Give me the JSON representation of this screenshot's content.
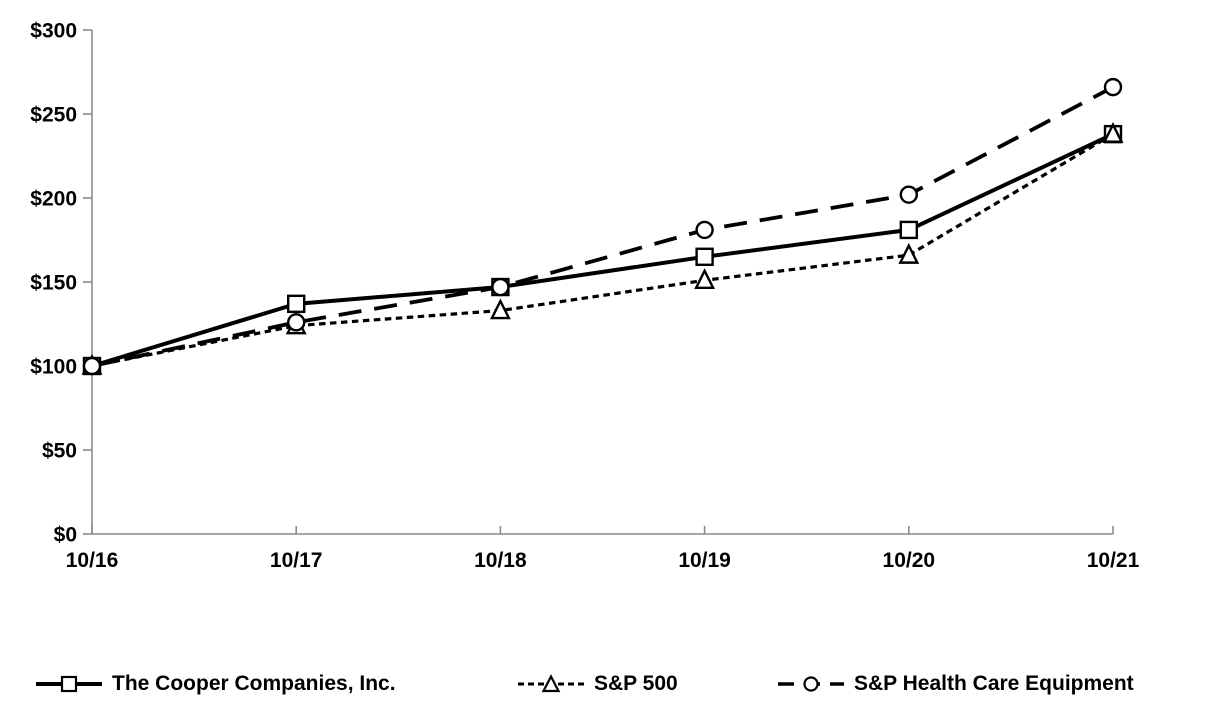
{
  "chart_data": {
    "type": "line",
    "title": "",
    "xlabel": "",
    "ylabel": "",
    "grid": false,
    "legend_position": "bottom",
    "categories": [
      "10/16",
      "10/17",
      "10/18",
      "10/19",
      "10/20",
      "10/21"
    ],
    "y_axis": {
      "range": [
        0,
        300
      ],
      "tick_values": [
        0,
        50,
        100,
        150,
        200,
        250,
        300
      ],
      "tick_labels": [
        "$0",
        "$50",
        "$100",
        "$150",
        "$200",
        "$250",
        "$300"
      ]
    },
    "series": [
      {
        "name": "The Cooper Companies, Inc.",
        "marker": "square",
        "line_style": "solid",
        "color": "#000000",
        "values": [
          100,
          137,
          147,
          165,
          181,
          238
        ]
      },
      {
        "name": "S&P 500",
        "marker": "triangle",
        "line_style": "short-dash",
        "color": "#000000",
        "values": [
          100,
          124,
          133,
          151,
          166,
          238
        ]
      },
      {
        "name": "S&P Health Care Equipment",
        "marker": "circle",
        "line_style": "long-dash",
        "color": "#000000",
        "values": [
          100,
          126,
          147,
          181,
          202,
          266
        ]
      }
    ],
    "colors": {
      "axis": "#8a8a8a",
      "text": "#000000",
      "background": "#ffffff",
      "marker_fill": "#ffffff"
    }
  }
}
